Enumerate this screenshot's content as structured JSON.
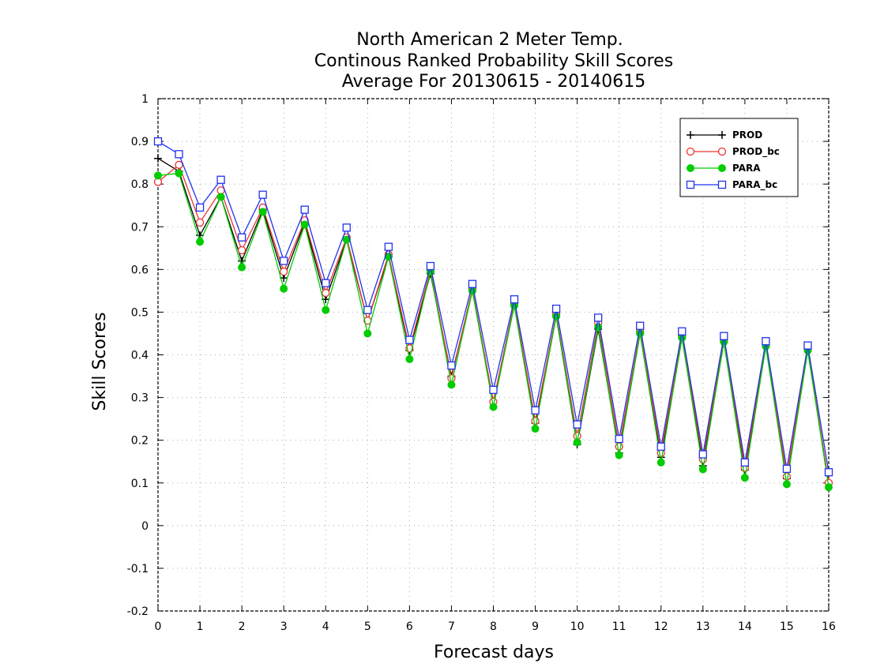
{
  "chart_data": {
    "type": "line",
    "title": [
      "North American 2 Meter Temp.",
      "Continous Ranked Probability Skill Scores",
      "Average For 20130615 - 20140615"
    ],
    "xlabel": "Forecast days",
    "ylabel": "Skill Scores",
    "xlim": [
      0,
      16
    ],
    "ylim": [
      -0.2,
      1
    ],
    "xticks": [
      0,
      1,
      2,
      3,
      4,
      5,
      6,
      7,
      8,
      9,
      10,
      11,
      12,
      13,
      14,
      15,
      16
    ],
    "yticks": [
      -0.2,
      -0.1,
      0,
      0.1,
      0.2,
      0.3,
      0.4,
      0.5,
      0.6,
      0.7,
      0.8,
      0.9,
      1
    ],
    "ytick_labels": [
      "-0.2",
      "-0.1",
      "0",
      "0.1",
      "0.2",
      "0.3",
      "0.4",
      "0.5",
      "0.6",
      "0.7",
      "0.8",
      "0.9",
      "1"
    ],
    "grid": true,
    "legend_position": "top-right",
    "x": [
      0,
      0.5,
      1,
      1.5,
      2,
      2.5,
      3,
      3.5,
      4,
      4.5,
      5,
      5.5,
      6,
      6.5,
      7,
      7.5,
      8,
      8.5,
      9,
      9.5,
      10,
      10.5,
      11,
      11.5,
      12,
      12.5,
      13,
      13.5,
      14,
      14.5,
      15,
      15.5,
      16
    ],
    "series": [
      {
        "name": "PROD",
        "color": "#000000",
        "marker": "plus",
        "values": [
          0.86,
          0.83,
          0.68,
          0.77,
          0.62,
          0.74,
          0.58,
          0.71,
          0.53,
          0.67,
          0.48,
          0.63,
          0.41,
          0.59,
          0.35,
          0.55,
          0.29,
          0.52,
          0.24,
          0.49,
          0.19,
          0.46,
          0.17,
          0.45,
          0.16,
          0.44,
          0.14,
          0.43,
          0.13,
          0.42,
          0.11,
          0.41,
          0.1
        ]
      },
      {
        "name": "PROD_bc",
        "color": "#ee3333",
        "marker": "circle-open",
        "values": [
          0.805,
          0.845,
          0.71,
          0.785,
          0.645,
          0.745,
          0.595,
          0.715,
          0.545,
          0.675,
          0.48,
          0.635,
          0.415,
          0.6,
          0.345,
          0.555,
          0.29,
          0.52,
          0.245,
          0.495,
          0.21,
          0.475,
          0.185,
          0.455,
          0.17,
          0.445,
          0.155,
          0.435,
          0.135,
          0.425,
          0.115,
          0.415,
          0.1
        ]
      },
      {
        "name": "PARA",
        "color": "#00cc00",
        "marker": "circle-filled",
        "values": [
          0.82,
          0.825,
          0.665,
          0.77,
          0.605,
          0.735,
          0.555,
          0.705,
          0.505,
          0.67,
          0.45,
          0.63,
          0.39,
          0.595,
          0.33,
          0.55,
          0.278,
          0.515,
          0.227,
          0.49,
          0.195,
          0.465,
          0.165,
          0.45,
          0.148,
          0.44,
          0.132,
          0.43,
          0.112,
          0.42,
          0.097,
          0.41,
          0.09
        ]
      },
      {
        "name": "PARA_bc",
        "color": "#2233ee",
        "marker": "square-open",
        "values": [
          0.9,
          0.87,
          0.745,
          0.81,
          0.675,
          0.775,
          0.62,
          0.74,
          0.568,
          0.698,
          0.505,
          0.653,
          0.435,
          0.608,
          0.375,
          0.566,
          0.318,
          0.53,
          0.27,
          0.508,
          0.237,
          0.487,
          0.203,
          0.468,
          0.185,
          0.455,
          0.167,
          0.444,
          0.148,
          0.432,
          0.133,
          0.422,
          0.125
        ]
      }
    ]
  }
}
